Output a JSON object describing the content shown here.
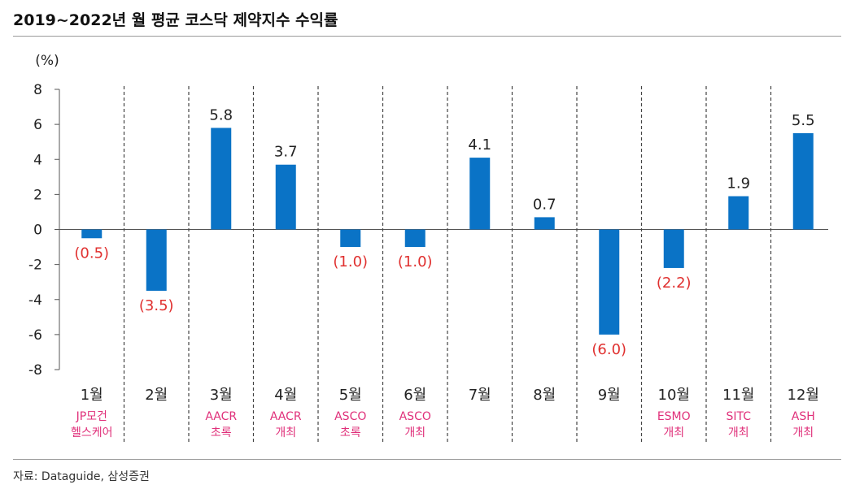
{
  "title": "2019~2022년 월 평균 코스닥 제약지수 수익률",
  "source": "자료: Dataguide, 삼성증권",
  "colors": {
    "bar": "#0a73c6",
    "negative_label": "#e0302f",
    "event_label": "#e0307a",
    "text": "#222222"
  },
  "chart_data": {
    "type": "bar",
    "unit_label": "(%)",
    "ylim": [
      -8,
      8
    ],
    "yticks": [
      8,
      6,
      4,
      2,
      0,
      -2,
      -4,
      -6,
      -8
    ],
    "ytick_labels": [
      "8",
      "6",
      "4",
      "2",
      "0",
      "-2",
      "-4",
      "-6",
      "-8"
    ],
    "categories": [
      "1월",
      "2월",
      "3월",
      "4월",
      "5월",
      "6월",
      "7월",
      "8월",
      "9월",
      "10월",
      "11월",
      "12월"
    ],
    "values": [
      -0.5,
      -3.5,
      5.8,
      3.7,
      -1.0,
      -1.0,
      4.1,
      0.7,
      -6.0,
      -2.2,
      1.9,
      5.5
    ],
    "data_labels": [
      "(0.5)",
      "(3.5)",
      "5.8",
      "3.7",
      "(1.0)",
      "(1.0)",
      "4.1",
      "0.7",
      "(6.0)",
      "(2.2)",
      "1.9",
      "5.5"
    ],
    "events": [
      [
        "JP모건",
        "헬스케어"
      ],
      [],
      [
        "AACR",
        "초록"
      ],
      [
        "AACR",
        "개최"
      ],
      [
        "ASCO",
        "초록"
      ],
      [
        "ASCO",
        "개최"
      ],
      [],
      [],
      [],
      [
        "ESMO",
        "개최"
      ],
      [
        "SITC",
        "개최"
      ],
      [
        "ASH",
        "개최"
      ]
    ],
    "category_separators": "dashed",
    "grid": false,
    "legend": "none"
  }
}
